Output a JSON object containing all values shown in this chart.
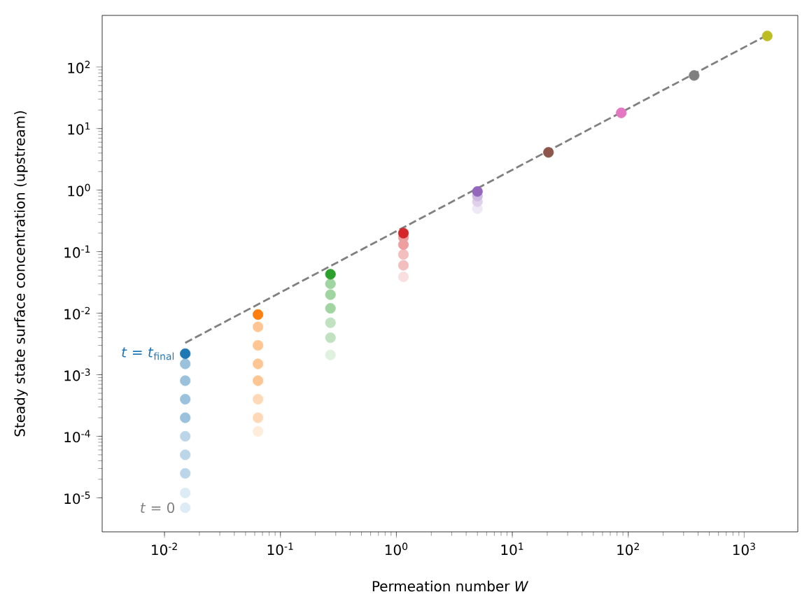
{
  "chart_data": {
    "type": "scatter",
    "xlabel": "Permeation number *W*",
    "ylabel": "Steady state surface concentration (upstream)",
    "log": "xy",
    "marker": "circle",
    "xlim": [
      0.0029,
      2900
    ],
    "ylim": [
      2.8e-06,
      690
    ],
    "xticks": [
      {
        "value": 0.01,
        "label": "10$^{-2}$"
      },
      {
        "value": 0.1,
        "label": "10$^{-1}$"
      },
      {
        "value": 1,
        "label": "10$^{0}$"
      },
      {
        "value": 10,
        "label": "10$^{1}$"
      },
      {
        "value": 100,
        "label": "10$^{2}$"
      },
      {
        "value": 1000,
        "label": "10$^{3}$"
      }
    ],
    "yticks": [
      {
        "value": 1e-05,
        "label": "10$^{-5}$"
      },
      {
        "value": 0.0001,
        "label": "10$^{-4}$"
      },
      {
        "value": 0.001,
        "label": "10$^{-3}$"
      },
      {
        "value": 0.01,
        "label": "10$^{-2}$"
      },
      {
        "value": 0.1,
        "label": "10$^{-1}$"
      },
      {
        "value": 1,
        "label": "10$^{0}$"
      },
      {
        "value": 10,
        "label": "10$^{1}$"
      },
      {
        "value": 100,
        "label": "10$^{2}$"
      }
    ],
    "annotations": [
      {
        "text": "*t* = *t*$_{final}$",
        "x": 0.0151,
        "y": 0.0022
      },
      {
        "text": "*t* = 0",
        "x": 0.0151,
        "y": 6.9e-06
      }
    ],
    "series": [
      {
        "color": "#1f77b4",
        "x": [
          0.0151,
          0.0151,
          0.0151,
          0.0151,
          0.0151,
          0.0151,
          0.0151,
          0.0151,
          0.0151,
          0.0151
        ],
        "values": [
          6.9e-06,
          1.2e-05,
          2.5e-05,
          5e-05,
          0.0001,
          0.0002,
          0.0004,
          0.0008,
          0.0015,
          0.0022
        ],
        "colors": [
          "#ddebf4",
          "#ddebf4",
          "#bcd6e9",
          "#bcd6e9",
          "#bcd6e9",
          "#9ac2dd",
          "#9ac2dd",
          "#9ac2dd",
          "#9ac2dd",
          null
        ]
      },
      {
        "color": "#ff7f0e",
        "x": [
          0.064,
          0.064,
          0.064,
          0.064,
          0.064,
          0.064,
          0.064,
          0.064
        ],
        "values": [
          0.00012,
          0.0002,
          0.0004,
          0.0008,
          0.0015,
          0.003,
          0.006,
          0.0095
        ],
        "colors": [
          "#ffecdb",
          "#ffd9b7",
          "#ffd9b7",
          "#ffc593",
          "#ffc593",
          "#ffc593",
          "#ffc593",
          null
        ]
      },
      {
        "color": "#2ca02c",
        "x": [
          0.27,
          0.27,
          0.27,
          0.27,
          0.27,
          0.27,
          0.27
        ],
        "values": [
          0.0021,
          0.004,
          0.007,
          0.012,
          0.02,
          0.03,
          0.043
        ],
        "colors": [
          "#dff1df",
          "#c0e2c0",
          "#c0e2c0",
          "#a0d4a0",
          "#a0d4a0",
          "#a0d4a0",
          null
        ]
      },
      {
        "color": "#d62728",
        "x": [
          1.15,
          1.15,
          1.15,
          1.15,
          1.15,
          1.15
        ],
        "values": [
          0.039,
          0.06,
          0.09,
          0.13,
          0.17,
          0.2
        ],
        "colors": [
          "#f9dfdf",
          "#f3bebe",
          "#f3bebe",
          "#ed9e9e",
          "#ed9e9e",
          null
        ]
      },
      {
        "color": "#9467bd",
        "x": [
          5,
          5,
          5,
          5
        ],
        "values": [
          0.5,
          0.65,
          0.8,
          0.95
        ],
        "colors": [
          "#efe8f5",
          "#dfd1eb",
          "#cfbbe1",
          null
        ]
      },
      {
        "color": "#8c564b",
        "x": [
          20.5
        ],
        "values": [
          4.1
        ]
      },
      {
        "color": "#e377c2",
        "x": [
          87
        ],
        "values": [
          18
        ]
      },
      {
        "color": "#7f7f7f",
        "x": [
          370
        ],
        "values": [
          73
        ]
      },
      {
        "color": "#bcbd22",
        "x": [
          1580
        ],
        "values": [
          320
        ]
      },
      {
        "type": "line",
        "color": "#808080",
        "line_style": "dashed",
        "marker": "none",
        "x": [
          0.0151,
          1580
        ],
        "values": [
          0.0033,
          330
        ]
      }
    ]
  }
}
